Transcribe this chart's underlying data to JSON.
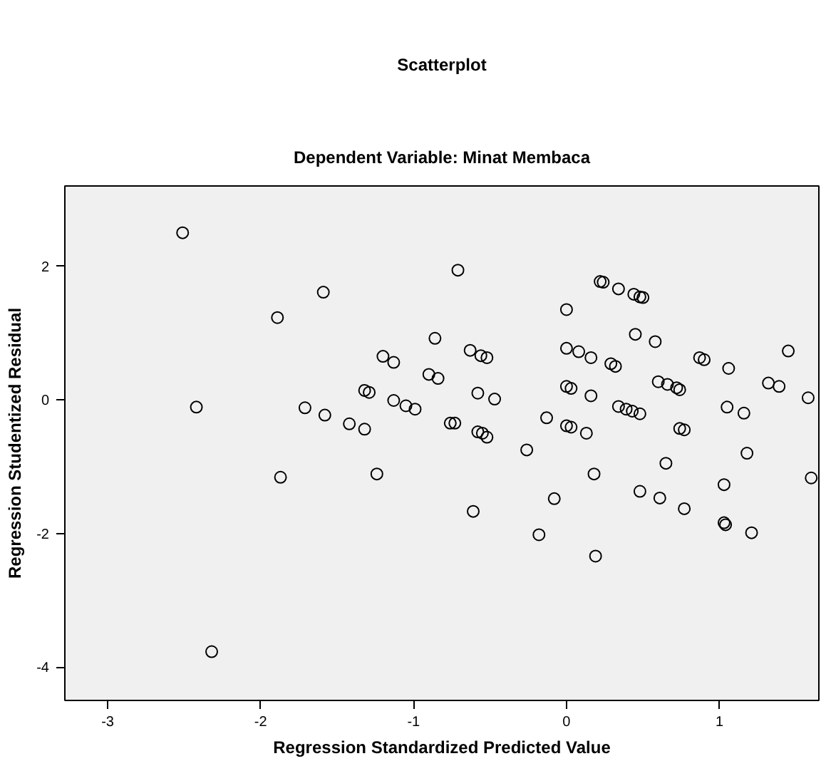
{
  "chart_data": {
    "type": "scatter",
    "title": "Scatterplot",
    "subtitle": "Dependent Variable: Minat Membaca",
    "xlabel": "Regression Standardized Predicted Value",
    "ylabel": "Regression Studentized Residual",
    "xlim": [
      -3.28,
      1.65
    ],
    "ylim": [
      -4.5,
      3.2
    ],
    "xticks": [
      -3,
      -2,
      -1,
      0,
      1
    ],
    "yticks": [
      -4,
      -2,
      0,
      2
    ],
    "grid": false,
    "marker": "circle",
    "series": [
      {
        "color": "#000000",
        "x": [
          -2.51,
          -1.59,
          -1.89,
          -2.42,
          -0.86,
          -1.2,
          -1.13,
          -0.9,
          -0.84,
          -1.32,
          -1.29,
          -1.13,
          -1.05,
          -0.99,
          -1.71,
          -1.58,
          -1.42,
          -1.32,
          -0.76,
          -0.71,
          0.22,
          0.24,
          0.34,
          0.44,
          0.48,
          0.5,
          0.0,
          0.45,
          0.58,
          -0.63,
          -0.56,
          -0.52,
          0.0,
          0.08,
          0.16,
          0.29,
          0.32,
          0.87,
          0.9,
          1.06,
          1.45,
          -0.58,
          -0.47,
          0.0,
          0.03,
          0.16,
          0.6,
          0.66,
          0.72,
          0.74,
          1.32,
          1.39,
          1.58,
          -0.73,
          0.34,
          0.39,
          0.43,
          0.48,
          1.05,
          1.16,
          -0.13,
          -0.58,
          -0.55,
          -0.52,
          -0.26,
          0.0,
          0.03,
          0.13,
          0.74,
          0.77,
          1.18,
          0.65,
          0.18,
          1.6,
          1.03,
          0.48,
          0.61,
          -0.08,
          0.77,
          -0.61,
          1.03,
          1.04,
          1.21,
          -0.18,
          0.19,
          -1.87,
          -1.24,
          -2.32
        ],
        "values": [
          2.5,
          1.61,
          1.23,
          -0.11,
          0.92,
          0.65,
          0.56,
          0.38,
          0.32,
          0.14,
          0.11,
          -0.01,
          -0.09,
          -0.14,
          -0.12,
          -0.23,
          -0.36,
          -0.44,
          -0.35,
          1.94,
          1.77,
          1.76,
          1.66,
          1.58,
          1.54,
          1.53,
          1.35,
          0.98,
          0.87,
          0.74,
          0.66,
          0.63,
          0.77,
          0.72,
          0.63,
          0.54,
          0.5,
          0.63,
          0.6,
          0.47,
          0.73,
          0.1,
          0.01,
          0.2,
          0.17,
          0.06,
          0.27,
          0.23,
          0.18,
          0.15,
          0.25,
          0.2,
          0.03,
          -0.35,
          -0.1,
          -0.14,
          -0.17,
          -0.21,
          -0.11,
          -0.2,
          -0.27,
          -0.48,
          -0.5,
          -0.56,
          -0.75,
          -0.39,
          -0.41,
          -0.5,
          -0.43,
          -0.45,
          -0.8,
          -0.95,
          -1.11,
          -1.17,
          -1.27,
          -1.37,
          -1.47,
          -1.48,
          -1.63,
          -1.67,
          -1.84,
          -1.87,
          -1.99,
          -2.02,
          -2.34,
          -1.16,
          -1.11,
          -3.77
        ]
      }
    ]
  }
}
